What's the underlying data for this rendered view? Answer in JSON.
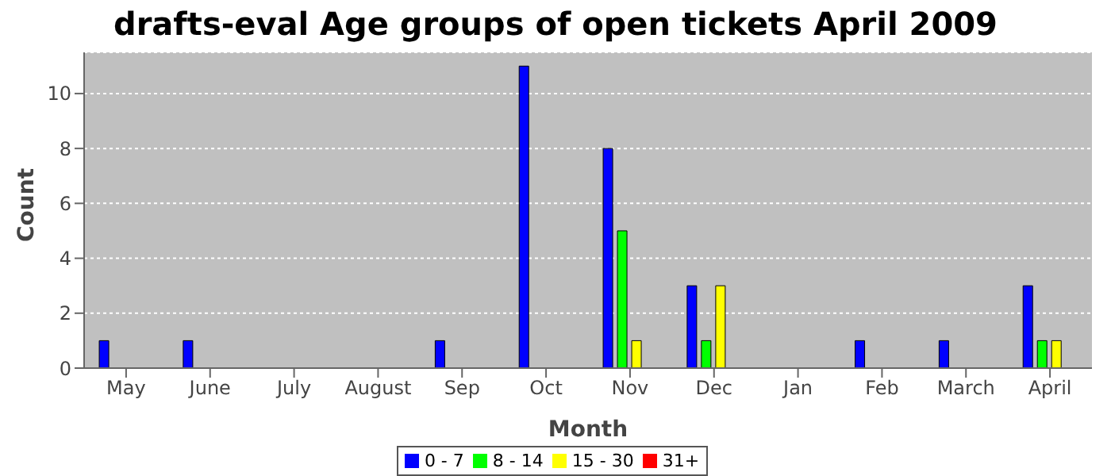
{
  "chart_data": {
    "type": "bar",
    "title": "drafts-eval Age groups of open tickets April 2009",
    "xlabel": "Month",
    "ylabel": "Count",
    "categories": [
      "May",
      "June",
      "July",
      "August",
      "Sep",
      "Oct",
      "Nov",
      "Dec",
      "Jan",
      "Feb",
      "March",
      "April"
    ],
    "series": [
      {
        "name": "0 - 7",
        "color": "#0000ff",
        "values": [
          1,
          1,
          0,
          0,
          1,
          11,
          8,
          3,
          0,
          1,
          1,
          3
        ]
      },
      {
        "name": "8 - 14",
        "color": "#00ff00",
        "values": [
          0,
          0,
          0,
          0,
          0,
          0,
          5,
          1,
          0,
          0,
          0,
          1
        ]
      },
      {
        "name": "15 - 30",
        "color": "#ffff00",
        "values": [
          0,
          0,
          0,
          0,
          0,
          0,
          1,
          3,
          0,
          0,
          0,
          1
        ]
      },
      {
        "name": "31+",
        "color": "#ff0000",
        "values": [
          0,
          0,
          0,
          0,
          0,
          0,
          0,
          0,
          0,
          0,
          0,
          0
        ]
      }
    ],
    "ylim": [
      0,
      11.5
    ],
    "yticks": [
      0,
      2,
      4,
      6,
      8,
      10
    ],
    "grid": "y",
    "legend": "bottom"
  }
}
